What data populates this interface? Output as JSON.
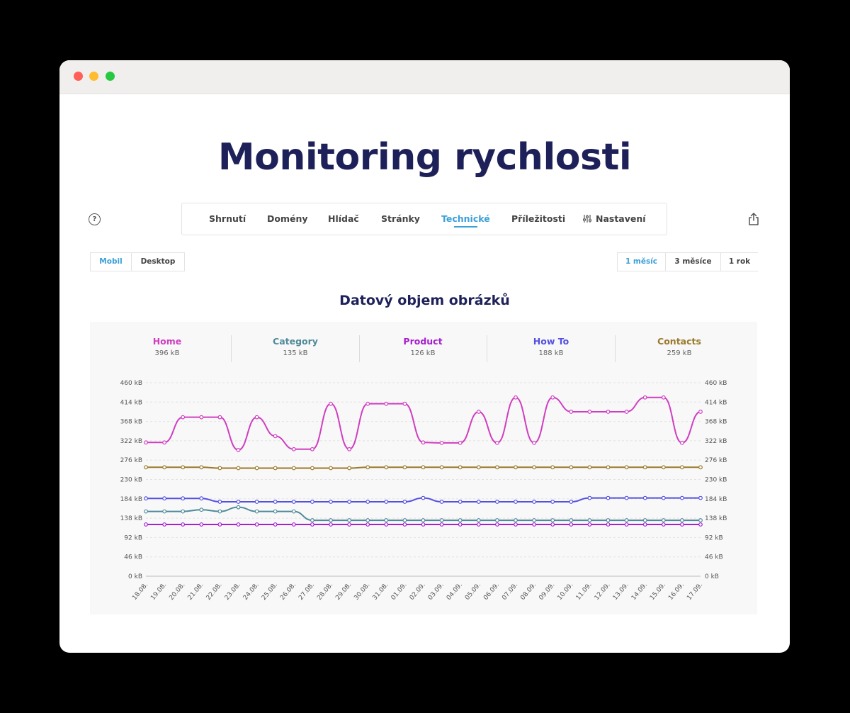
{
  "page": {
    "title": "Monitoring rychlosti"
  },
  "nav": {
    "items": [
      {
        "label": "Shrnutí"
      },
      {
        "label": "Domény"
      },
      {
        "label": "Hlídač"
      },
      {
        "label": "Stránky"
      },
      {
        "label": "Technické",
        "active": true
      },
      {
        "label": "Příležitosti"
      },
      {
        "label": "Nastavení",
        "icon": "sliders-icon"
      }
    ]
  },
  "device_toggle": {
    "options": [
      "Mobil",
      "Desktop"
    ],
    "selected": "Mobil"
  },
  "range_toggle": {
    "options": [
      "1 měsíc",
      "3 měsíce",
      "1 rok"
    ],
    "selected": "1 měsíc"
  },
  "chart_title": "Datový objem obrázků",
  "legend": [
    {
      "name": "Home",
      "value": "396 kB",
      "color": "#cf3ec1"
    },
    {
      "name": "Category",
      "value": "135 kB",
      "color": "#4f8a9a"
    },
    {
      "name": "Product",
      "value": "126 kB",
      "color": "#a71fcf"
    },
    {
      "name": "How To",
      "value": "188 kB",
      "color": "#5350e0"
    },
    {
      "name": "Contacts",
      "value": "259 kB",
      "color": "#9a7a2c"
    }
  ],
  "chart_data": {
    "type": "line",
    "categories": [
      "18.08.",
      "19.08.",
      "20.08.",
      "21.08.",
      "22.08.",
      "23.08.",
      "24.08.",
      "25.08.",
      "26.08.",
      "27.08.",
      "28.08.",
      "29.08.",
      "30.08.",
      "31.08.",
      "01.09.",
      "02.09.",
      "03.09.",
      "04.09.",
      "05.09.",
      "06.09.",
      "07.09.",
      "08.09.",
      "09.09.",
      "10.09.",
      "11.09.",
      "12.09.",
      "13.09.",
      "14.09.",
      "15.09.",
      "16.09.",
      "17.09."
    ],
    "y_ticks": [
      "0 kB",
      "46 kB",
      "92 kB",
      "138 kB",
      "184 kB",
      "230 kB",
      "276 kB",
      "322 kB",
      "368 kB",
      "414 kB",
      "460 kB"
    ],
    "ylim": [
      0,
      460
    ],
    "unit": "kB",
    "grid": true,
    "series": [
      {
        "name": "Home",
        "color": "#cf3ec1",
        "values": [
          318,
          318,
          378,
          378,
          378,
          300,
          378,
          333,
          302,
          302,
          410,
          302,
          410,
          410,
          410,
          318,
          317,
          317,
          391,
          317,
          425,
          317,
          425,
          391,
          391,
          391,
          391,
          425,
          425,
          317,
          391
        ]
      },
      {
        "name": "Contacts",
        "color": "#9a7a2c",
        "values": [
          259,
          259,
          259,
          259,
          257,
          257,
          257,
          257,
          257,
          257,
          257,
          257,
          259,
          259,
          259,
          259,
          259,
          259,
          259,
          259,
          259,
          259,
          259,
          259,
          259,
          259,
          259,
          259,
          259,
          259,
          259
        ]
      },
      {
        "name": "How To",
        "color": "#5350e0",
        "values": [
          185,
          185,
          185,
          185,
          177,
          177,
          177,
          177,
          177,
          177,
          177,
          177,
          177,
          177,
          177,
          186,
          177,
          177,
          177,
          177,
          177,
          177,
          177,
          177,
          186,
          186,
          186,
          186,
          186,
          186,
          186
        ]
      },
      {
        "name": "Category",
        "color": "#4f8a9a",
        "values": [
          154,
          154,
          154,
          158,
          154,
          164,
          154,
          154,
          154,
          133,
          133,
          133,
          133,
          133,
          133,
          133,
          133,
          133,
          133,
          133,
          133,
          133,
          133,
          133,
          133,
          133,
          133,
          133,
          133,
          133,
          133
        ]
      },
      {
        "name": "Product",
        "color": "#a71fcf",
        "values": [
          123,
          123,
          123,
          123,
          123,
          123,
          123,
          123,
          123,
          123,
          123,
          123,
          123,
          123,
          123,
          123,
          123,
          123,
          123,
          123,
          123,
          123,
          123,
          123,
          123,
          123,
          123,
          123,
          123,
          123,
          123
        ]
      }
    ]
  }
}
